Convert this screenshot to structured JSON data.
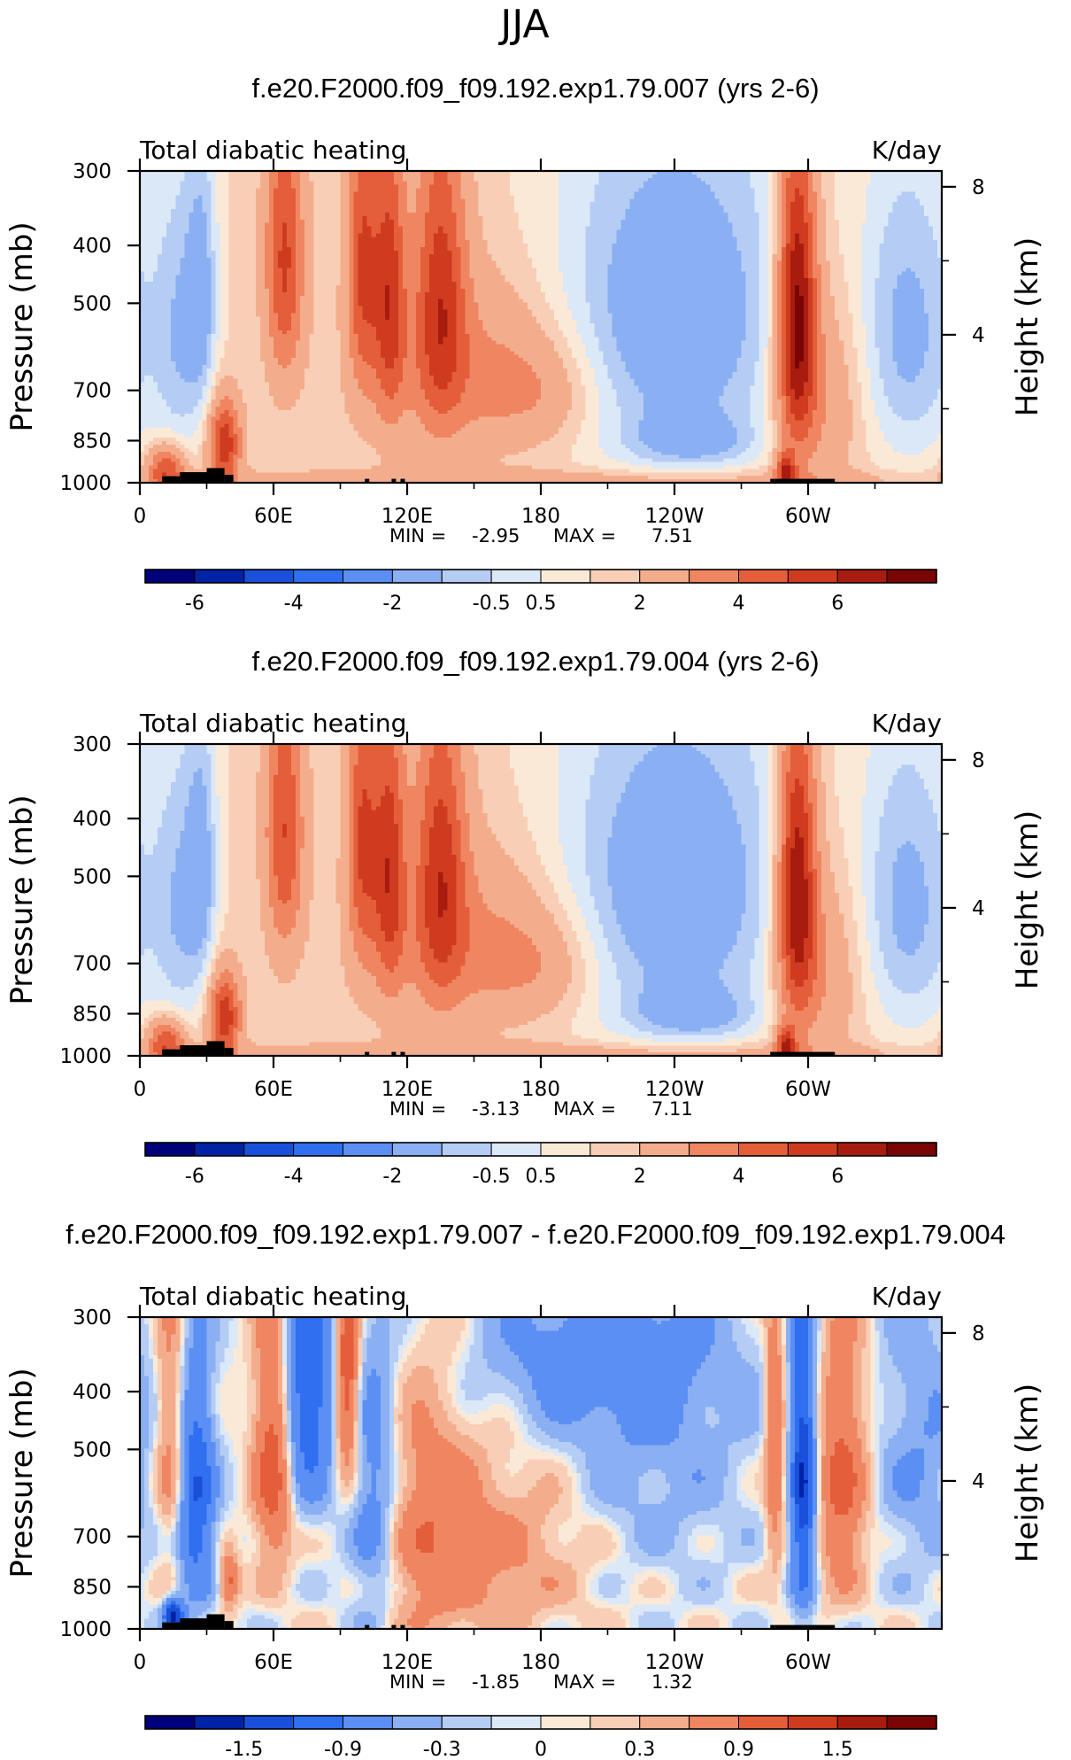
{
  "figure": {
    "season": "JJA"
  },
  "colors": {
    "heat_levels": [
      "#00007a",
      "#0022a6",
      "#1a4fd9",
      "#2f6ff0",
      "#5b8ff4",
      "#8aaff2",
      "#b5cdf5",
      "#dbe8f7",
      "#fbe9d7",
      "#f8cfb6",
      "#f4ad8c",
      "#ef8661",
      "#e45e3a",
      "#cf3b1e",
      "#a81c10",
      "#7a0505"
    ],
    "terrain": "#000000",
    "frame": "#000000"
  },
  "chart_data": [
    {
      "type": "heatmap",
      "title": "f.e20.F2000.f09_f09.192.exp1.79.007 (yrs 2-6)",
      "left_label": "Total diabatic heating",
      "right_label": "K/day",
      "ylabel": "Pressure (mb)",
      "y2label": "Height (km)",
      "x_ticks": [
        "0",
        "60E",
        "120E",
        "180",
        "120W",
        "60W"
      ],
      "y_ticks": [
        "300",
        "400",
        "500",
        "700",
        "850",
        "1000"
      ],
      "y2_ticks": [
        "8",
        "4"
      ],
      "min_label": "MIN =",
      "min_value": "-2.95",
      "max_label": "MAX =",
      "max_value": "7.51",
      "colorbar_labels": [
        "-6",
        "-4",
        "-2",
        "-0.5",
        "0.5",
        "2",
        "4",
        "6"
      ],
      "field_variant": 0
    },
    {
      "type": "heatmap",
      "title": "f.e20.F2000.f09_f09.192.exp1.79.004 (yrs 2-6)",
      "left_label": "Total diabatic heating",
      "right_label": "K/day",
      "ylabel": "Pressure (mb)",
      "y2label": "Height (km)",
      "x_ticks": [
        "0",
        "60E",
        "120E",
        "180",
        "120W",
        "60W"
      ],
      "y_ticks": [
        "300",
        "400",
        "500",
        "700",
        "850",
        "1000"
      ],
      "y2_ticks": [
        "8",
        "4"
      ],
      "min_label": "MIN =",
      "min_value": "-3.13",
      "max_label": "MAX =",
      "max_value": "7.11",
      "colorbar_labels": [
        "-6",
        "-4",
        "-2",
        "-0.5",
        "0.5",
        "2",
        "4",
        "6"
      ],
      "field_variant": 1
    },
    {
      "type": "heatmap",
      "title": "f.e20.F2000.f09_f09.192.exp1.79.007 - f.e20.F2000.f09_f09.192.exp1.79.004",
      "left_label": "Total diabatic heating",
      "right_label": "K/day",
      "ylabel": "Pressure (mb)",
      "y2label": "Height (km)",
      "x_ticks": [
        "0",
        "60E",
        "120E",
        "180",
        "120W",
        "60W"
      ],
      "y_ticks": [
        "300",
        "400",
        "500",
        "700",
        "850",
        "1000"
      ],
      "y2_ticks": [
        "8",
        "4"
      ],
      "min_label": "MIN =",
      "min_value": "-1.85",
      "max_label": "MAX =",
      "max_value": "1.32",
      "colorbar_labels": [
        "-1.5",
        "-0.9",
        "-0.3",
        "0",
        "0.3",
        "0.9",
        "1.5"
      ],
      "field_variant": 2
    }
  ]
}
